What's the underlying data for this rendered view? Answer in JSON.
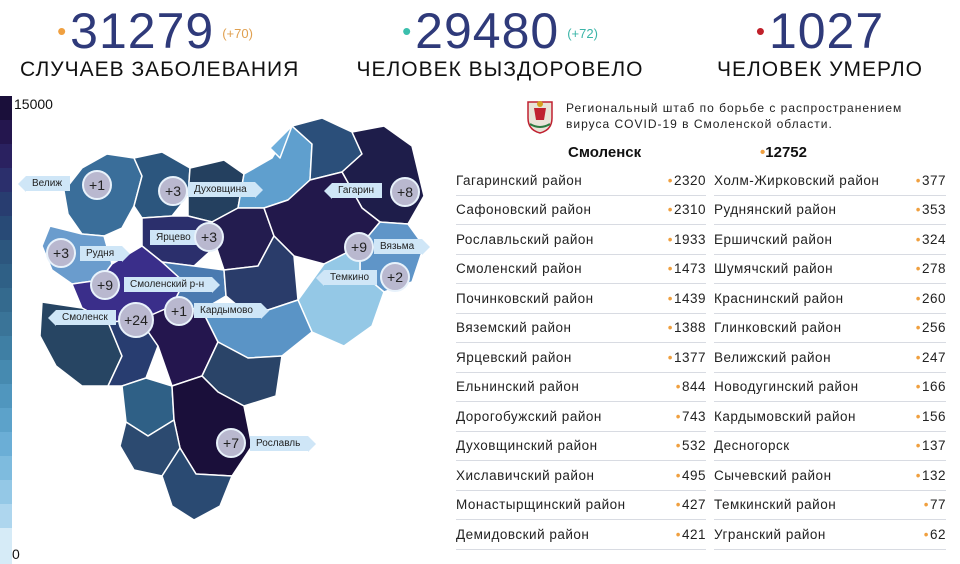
{
  "stats": {
    "cases": {
      "value": "31279",
      "delta": "(+70)",
      "label": "Случаев заболевания",
      "dot_color": "#f0a040",
      "delta_color": "#e0a050"
    },
    "recovered": {
      "value": "29480",
      "delta": "(+72)",
      "label": "Человек выздоровело",
      "dot_color": "#3bbfad",
      "delta_color": "#3bb5a8"
    },
    "deaths": {
      "value": "1027",
      "label": "Человек умерло",
      "dot_color": "#c0202a"
    }
  },
  "legend": {
    "max": "15000",
    "min": "0"
  },
  "header": {
    "title_line1": "Региональный штаб по борьбе с распространением",
    "title_line2": "вируса COVID-19 в Смоленской области.",
    "city_name": "Смоленск",
    "city_value": "12752"
  },
  "districts_left": [
    {
      "name": "Гагаринский район",
      "value": "2320"
    },
    {
      "name": "Сафоновский район",
      "value": "2310"
    },
    {
      "name": "Рославльский район",
      "value": "1933"
    },
    {
      "name": "Смоленский район",
      "value": "1473"
    },
    {
      "name": "Починковский район",
      "value": "1439"
    },
    {
      "name": "Вяземский район",
      "value": "1388"
    },
    {
      "name": "Ярцевский район",
      "value": "1377"
    },
    {
      "name": "Ельнинский район",
      "value": "844"
    },
    {
      "name": "Дорогобужский район",
      "value": "743"
    },
    {
      "name": "Духовщинский район",
      "value": "532"
    },
    {
      "name": "Хиславичский район",
      "value": "495"
    },
    {
      "name": "Монастырщинский район",
      "value": "427"
    },
    {
      "name": "Демидовский район",
      "value": "421"
    }
  ],
  "districts_right": [
    {
      "name": "Холм-Жирковский район",
      "value": "377"
    },
    {
      "name": "Руднянский район",
      "value": "353"
    },
    {
      "name": "Ершичский район",
      "value": "324"
    },
    {
      "name": "Шумячский район",
      "value": "278"
    },
    {
      "name": "Краснинский район",
      "value": "260"
    },
    {
      "name": "Глинковский район",
      "value": "256"
    },
    {
      "name": "Велижский район",
      "value": "247"
    },
    {
      "name": "Новодугинский район",
      "value": "166"
    },
    {
      "name": "Кардымовский район",
      "value": "156"
    },
    {
      "name": "Десногорск",
      "value": "137"
    },
    {
      "name": "Сычевский район",
      "value": "132"
    },
    {
      "name": "Темкинский район",
      "value": "77"
    },
    {
      "name": "Угранский район",
      "value": "62"
    }
  ],
  "map_labels": [
    {
      "id": "velizh",
      "text": "Велиж",
      "increase": "+1"
    },
    {
      "id": "dukhovshchina",
      "text": "Духовщина",
      "increase": "+3"
    },
    {
      "id": "gagarin",
      "text": "Гагарин",
      "increase": "+8"
    },
    {
      "id": "yartsevo",
      "text": "Ярцево",
      "increase": "+3"
    },
    {
      "id": "vyazma",
      "text": "Вязьма",
      "increase": "+9"
    },
    {
      "id": "rudnya",
      "text": "Рудня",
      "increase": "+3"
    },
    {
      "id": "temkino",
      "text": "Темкино",
      "increase": "+2"
    },
    {
      "id": "smolensk-rn",
      "text": "Смоленский р-н",
      "increase": "+9"
    },
    {
      "id": "smolensk",
      "text": "Смоленск",
      "increase": "+24"
    },
    {
      "id": "kardymovo",
      "text": "Кардымово",
      "increase": "+1"
    },
    {
      "id": "roslavl",
      "text": "Рославль",
      "increase": "+7"
    }
  ]
}
